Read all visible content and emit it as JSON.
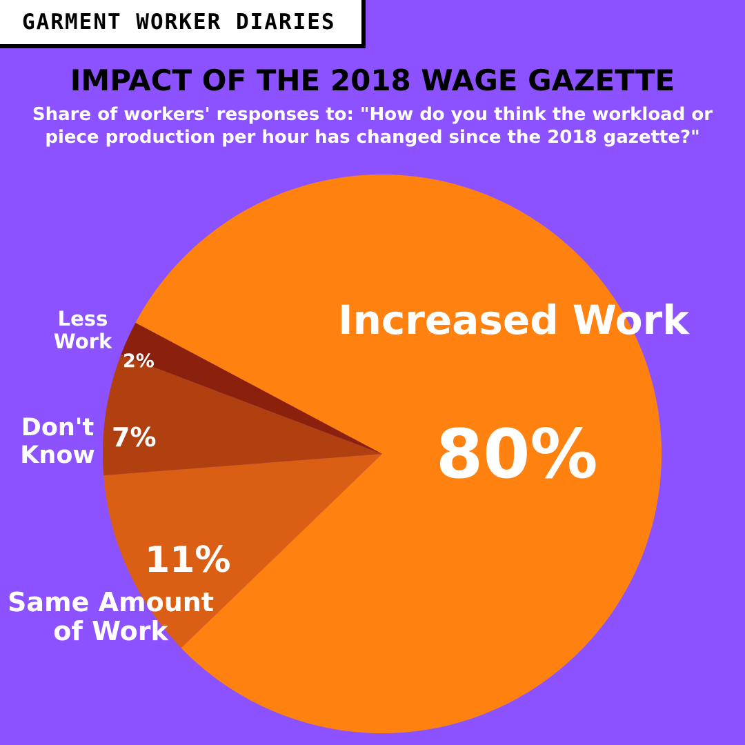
{
  "brand": "GARMENT WORKER DIARIES",
  "title": "IMPACT OF THE 2018 WAGE GAZETTE",
  "subtitle_line1": "Share of workers' responses to: \"How do you think the workload or",
  "subtitle_line2": "piece production per hour has changed since the 2018 gazette?\"",
  "colors": {
    "background": "#8c52ff",
    "increased": "#ff8210",
    "same": "#da5f14",
    "dont_know": "#b04010",
    "less": "#8b200c"
  },
  "chart_data": {
    "type": "pie",
    "slices": [
      {
        "label": "Increased Work",
        "value": 80,
        "pct_label": "80%",
        "color": "#ff8210"
      },
      {
        "label": "Same Amount of Work",
        "value": 11,
        "pct_label": "11%",
        "color": "#da5f14"
      },
      {
        "label": "Don't Know",
        "value": 7,
        "pct_label": "7%",
        "color": "#b04010"
      },
      {
        "label": "Less Work",
        "value": 2,
        "pct_label": "2%",
        "color": "#8b200c"
      }
    ],
    "labels": {
      "increased_name": "Increased Work",
      "increased_pct": "80%",
      "less_line1": "Less",
      "less_line2": "Work",
      "less_pct": "2%",
      "dk_line1": "Don't",
      "dk_line2": "Know",
      "dk_pct": "7%",
      "same_pct": "11%",
      "same_line1": "Same Amount",
      "same_line2": "of Work"
    }
  }
}
